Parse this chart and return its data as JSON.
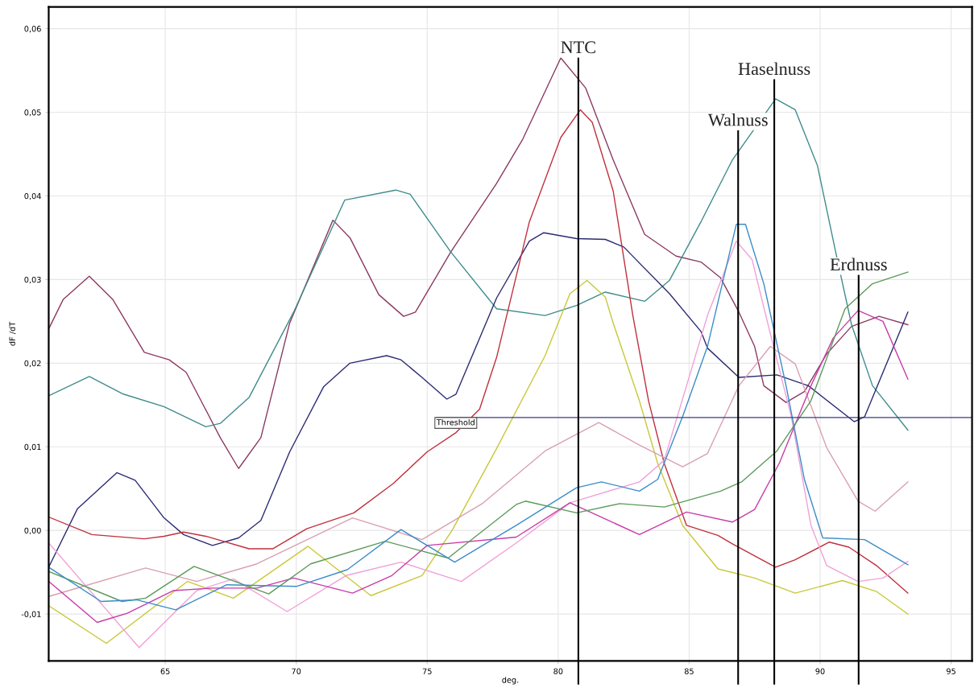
{
  "chart_data": {
    "type": "line",
    "xlabel": "deg.",
    "ylabel": "dF /dT",
    "xlim": [
      60.55,
      95.8
    ],
    "ylim": [
      -0.0156,
      0.0626
    ],
    "xticks": [
      65,
      70,
      75,
      80,
      85,
      90,
      95
    ],
    "yticks": [
      {
        "value": -0.01,
        "label": "-0,01"
      },
      {
        "value": 0,
        "label": "0,00"
      },
      {
        "value": 0.01,
        "label": "0,01"
      },
      {
        "value": 0.02,
        "label": "0,02"
      },
      {
        "value": 0.03,
        "label": "0,03"
      },
      {
        "value": 0.04,
        "label": "0,04"
      },
      {
        "value": 0.05,
        "label": "0,05"
      },
      {
        "value": 0.06,
        "label": "0,06"
      }
    ],
    "grid": true,
    "series": [
      {
        "color": "#8b3a62",
        "x": [
          60.55,
          61.1,
          62.1,
          63.0,
          64.2,
          65.15,
          65.8,
          67.1,
          67.8,
          68.65,
          69.75,
          71.4,
          72.05,
          73.15,
          74.1,
          74.55,
          75.9,
          77.65,
          78.65,
          80.1,
          81.05,
          82.1,
          83.3,
          84.5,
          85.45,
          86.2,
          86.9,
          87.5,
          87.85,
          88.7,
          89.4,
          90.25,
          91.2,
          92.25,
          93.35
        ],
        "values": [
          0.0241,
          0.0276,
          0.0304,
          0.0276,
          0.0213,
          0.0204,
          0.0189,
          0.0111,
          0.0074,
          0.0111,
          0.0248,
          0.0371,
          0.035,
          0.0282,
          0.0256,
          0.0261,
          0.0333,
          0.0415,
          0.0468,
          0.0565,
          0.0529,
          0.0443,
          0.0354,
          0.0328,
          0.0321,
          0.0302,
          0.0261,
          0.022,
          0.0173,
          0.0153,
          0.0166,
          0.0211,
          0.0244,
          0.0256,
          0.0246
        ]
      },
      {
        "color": "#3f8c8c",
        "x": [
          60.55,
          62.1,
          63.4,
          64.95,
          66.55,
          67.1,
          68.2,
          69.9,
          71.85,
          73.8,
          74.35,
          75.9,
          77.65,
          79.5,
          80.7,
          81.8,
          83.3,
          84.25,
          85.45,
          86.65,
          88.3,
          89.05,
          89.9,
          90.6,
          91.2,
          92.0,
          93.35
        ],
        "values": [
          0.0161,
          0.0184,
          0.0163,
          0.0148,
          0.0124,
          0.0128,
          0.0159,
          0.0261,
          0.0395,
          0.0407,
          0.0402,
          0.0333,
          0.0265,
          0.0257,
          0.0269,
          0.0285,
          0.0274,
          0.0299,
          0.0369,
          0.0443,
          0.0516,
          0.0503,
          0.0436,
          0.0332,
          0.0246,
          0.0173,
          0.012
        ]
      },
      {
        "color": "#2b2b73",
        "x": [
          60.55,
          61.65,
          63.15,
          63.85,
          64.95,
          65.7,
          66.8,
          67.8,
          68.65,
          69.75,
          71.05,
          72.05,
          73.45,
          74.0,
          74.8,
          75.75,
          76.1,
          77.65,
          78.9,
          79.45,
          80.7,
          81.8,
          82.5,
          84.25,
          85.45,
          85.7,
          86.9,
          88.35,
          89.55,
          91.3,
          91.7,
          93.35
        ],
        "values": [
          -0.0044,
          0.0026,
          0.0069,
          0.006,
          0.0015,
          -0.0005,
          -0.0018,
          -0.0009,
          0.0012,
          0.0094,
          0.0172,
          0.02,
          0.0209,
          0.0204,
          0.0183,
          0.0157,
          0.0163,
          0.0278,
          0.0346,
          0.0356,
          0.0349,
          0.0348,
          0.0339,
          0.0283,
          0.0238,
          0.0218,
          0.0183,
          0.0186,
          0.0173,
          0.013,
          0.0136,
          0.0261
        ]
      },
      {
        "color": "#c0303c",
        "x": [
          60.55,
          62.2,
          64.2,
          64.95,
          65.7,
          66.55,
          68.2,
          69.1,
          70.4,
          72.2,
          73.7,
          75.0,
          76.1,
          77.0,
          77.65,
          78.9,
          80.1,
          80.85,
          81.3,
          82.1,
          82.85,
          83.45,
          84.05,
          84.9,
          86.1,
          86.65,
          88.3,
          89.05,
          90.35,
          91.1,
          92.15,
          93.35
        ],
        "values": [
          0.0016,
          -0.0005,
          -0.001,
          -0.0007,
          -0.0002,
          -0.0007,
          -0.0022,
          -0.0022,
          0.0002,
          0.0021,
          0.0056,
          0.0094,
          0.0117,
          0.0145,
          0.0207,
          0.0369,
          0.047,
          0.0503,
          0.0488,
          0.0406,
          0.0257,
          0.0155,
          0.008,
          0.0006,
          -0.0006,
          -0.0016,
          -0.0044,
          -0.0035,
          -0.0014,
          -0.002,
          -0.0042,
          -0.0075
        ]
      },
      {
        "color": "#c8c83a",
        "x": [
          60.55,
          62.75,
          65.85,
          67.6,
          70.45,
          72.85,
          74.8,
          75.95,
          77.65,
          79.5,
          80.45,
          81.1,
          81.8,
          82.1,
          83.1,
          83.8,
          84.75,
          86.1,
          87.5,
          89.05,
          90.85,
          92.15,
          93.35
        ],
        "values": [
          -0.009,
          -0.0135,
          -0.0061,
          -0.0081,
          -0.0019,
          -0.0078,
          -0.0054,
          0.0,
          0.0098,
          0.0209,
          0.0283,
          0.0299,
          0.0279,
          0.0248,
          0.0155,
          0.008,
          0.0006,
          -0.0046,
          -0.0057,
          -0.0075,
          -0.006,
          -0.0073,
          -0.01
        ]
      },
      {
        "color": "#f0a0d8",
        "x": [
          60.55,
          64.0,
          66.2,
          67.6,
          69.65,
          71.9,
          74.0,
          76.3,
          78.4,
          80.45,
          83.1,
          84.05,
          84.9,
          85.7,
          86.8,
          87.4,
          88.1,
          88.9,
          89.65,
          90.25,
          91.45,
          92.4,
          93.35
        ],
        "values": [
          -0.0015,
          -0.014,
          -0.0072,
          -0.0058,
          -0.0097,
          -0.0054,
          -0.0038,
          -0.0061,
          -0.0015,
          0.0033,
          0.0058,
          0.0084,
          0.0173,
          0.0257,
          0.0346,
          0.0324,
          0.0235,
          0.0136,
          0.0006,
          -0.0042,
          -0.0061,
          -0.0057,
          -0.0037
        ]
      },
      {
        "color": "#d8a0b0",
        "x": [
          60.55,
          64.25,
          66.2,
          68.5,
          72.15,
          74.8,
          77.1,
          78.4,
          79.5,
          81.55,
          83.1,
          84.75,
          85.7,
          86.9,
          88.1,
          89.05,
          90.25,
          91.45,
          92.1,
          93.35
        ],
        "values": [
          -0.0079,
          -0.0045,
          -0.0061,
          -0.004,
          0.0015,
          -0.0011,
          0.0032,
          0.0066,
          0.0095,
          0.0129,
          0.0102,
          0.0076,
          0.0092,
          0.0173,
          0.022,
          0.0199,
          0.0099,
          0.0035,
          0.0023,
          0.0058
        ]
      },
      {
        "color": "#c83ca8",
        "x": [
          60.55,
          62.4,
          63.55,
          65.3,
          66.8,
          68.5,
          69.9,
          72.15,
          73.65,
          75.0,
          78.4,
          80.45,
          83.1,
          84.9,
          86.65,
          87.5,
          88.45,
          89.65,
          90.5,
          91.45,
          92.4,
          93.35
        ],
        "values": [
          -0.0061,
          -0.011,
          -0.0099,
          -0.0072,
          -0.0069,
          -0.0069,
          -0.0057,
          -0.0075,
          -0.0054,
          -0.0018,
          -0.0008,
          0.0033,
          -0.0005,
          0.0022,
          0.001,
          0.0025,
          0.0081,
          0.0173,
          0.023,
          0.0263,
          0.025,
          0.0181
        ]
      },
      {
        "color": "#5a9a5a",
        "x": [
          60.55,
          63.35,
          64.25,
          66.1,
          68.95,
          70.55,
          73.4,
          75.8,
          78.4,
          78.75,
          80.7,
          82.35,
          84.05,
          86.2,
          87.0,
          88.35,
          89.65,
          90.95,
          92.0,
          93.35
        ],
        "values": [
          -0.0049,
          -0.0085,
          -0.0081,
          -0.0043,
          -0.0076,
          -0.004,
          -0.0013,
          -0.0033,
          0.0031,
          0.0035,
          0.0021,
          0.0032,
          0.0028,
          0.0047,
          0.0058,
          0.0095,
          0.0155,
          0.0265,
          0.0295,
          0.0309
        ]
      },
      {
        "color": "#3c8cc8",
        "x": [
          60.55,
          62.55,
          63.9,
          65.4,
          67.35,
          70.0,
          71.95,
          74.0,
          76.05,
          78.4,
          80.7,
          81.65,
          83.1,
          83.8,
          84.75,
          85.7,
          86.8,
          87.15,
          87.85,
          88.7,
          89.4,
          90.1,
          91.7,
          93.35
        ],
        "values": [
          -0.0044,
          -0.0085,
          -0.0083,
          -0.0095,
          -0.0065,
          -0.0067,
          -0.0047,
          0.0001,
          -0.0038,
          0.0006,
          0.0051,
          0.0058,
          0.0047,
          0.0061,
          0.0136,
          0.022,
          0.0366,
          0.0366,
          0.0295,
          0.0173,
          0.0061,
          -0.0009,
          -0.0011,
          -0.0041
        ]
      }
    ],
    "ref_lines": [
      {
        "axis": "y",
        "value": 0.0135,
        "label": "Threshold",
        "color": "#3a3a8a"
      },
      {
        "axis": "x",
        "value": 80.77,
        "label": "NTC",
        "color": "#000000"
      },
      {
        "axis": "x",
        "value": 86.87,
        "label": "Walnuss",
        "color": "#000000"
      },
      {
        "axis": "x",
        "value": 88.25,
        "label": "Haselnuss",
        "color": "#000000"
      },
      {
        "axis": "x",
        "value": 91.47,
        "label": "Erdnuss",
        "color": "#000000"
      }
    ]
  }
}
